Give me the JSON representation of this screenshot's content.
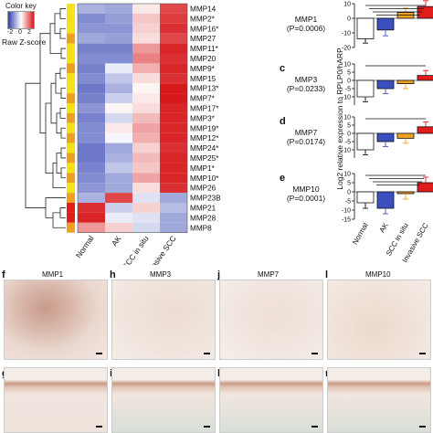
{
  "color_key": {
    "title": "Color key",
    "ticks": [
      "-2",
      "0",
      "2"
    ],
    "label": "Raw Z-score",
    "colors": {
      "low": "#2f3fb0",
      "mid": "#ffffff",
      "high": "#d7191c"
    }
  },
  "heatmap": {
    "columns": [
      "Normal",
      "AK",
      "SCC in situ",
      "Invasive SCC"
    ],
    "rows": [
      {
        "gene": "MMP14",
        "z": [
          -0.8,
          -0.9,
          0.2,
          1.6
        ],
        "group": "yellow"
      },
      {
        "gene": "MMP2*",
        "z": [
          -1.2,
          -1.0,
          0.5,
          1.7
        ],
        "group": "yellow"
      },
      {
        "gene": "MMP16*",
        "z": [
          -1.1,
          -1.1,
          0.4,
          1.8
        ],
        "group": "yellow"
      },
      {
        "gene": "MMP27",
        "z": [
          -0.9,
          -1.0,
          0.3,
          1.6
        ],
        "group": "orange"
      },
      {
        "gene": "MMP11*",
        "z": [
          -1.3,
          -1.3,
          0.9,
          1.9
        ],
        "group": "yellow"
      },
      {
        "gene": "MMP20",
        "z": [
          -1.2,
          -1.2,
          1.1,
          1.8
        ],
        "group": "yellow"
      },
      {
        "gene": "MMP9*",
        "z": [
          -1.3,
          -0.2,
          0.7,
          1.9
        ],
        "group": "orange"
      },
      {
        "gene": "MMP15",
        "z": [
          -1.2,
          -0.6,
          0.3,
          1.8
        ],
        "group": "yellow"
      },
      {
        "gene": "MMP13*",
        "z": [
          -1.4,
          -0.8,
          0.1,
          2.0
        ],
        "group": "yellow"
      },
      {
        "gene": "MMP7*",
        "z": [
          -1.3,
          -0.5,
          0.2,
          2.0
        ],
        "group": "orange"
      },
      {
        "gene": "MMP17*",
        "z": [
          -1.1,
          0.1,
          0.3,
          1.9
        ],
        "group": "yellow"
      },
      {
        "gene": "MMP3*",
        "z": [
          -1.3,
          -0.4,
          0.6,
          1.9
        ],
        "group": "orange"
      },
      {
        "gene": "MMP19*",
        "z": [
          -1.2,
          0.2,
          0.8,
          1.9
        ],
        "group": "yellow"
      },
      {
        "gene": "MMP12*",
        "z": [
          -1.2,
          -0.1,
          0.7,
          1.9
        ],
        "group": "orange"
      },
      {
        "gene": "MMP24*",
        "z": [
          -1.4,
          -0.9,
          0.4,
          1.8
        ],
        "group": "yellow"
      },
      {
        "gene": "MMP25*",
        "z": [
          -1.4,
          -0.8,
          0.6,
          1.9
        ],
        "group": "orange"
      },
      {
        "gene": "MMP1*",
        "z": [
          -1.3,
          -0.6,
          0.5,
          1.9
        ],
        "group": "yellow"
      },
      {
        "gene": "MMP10*",
        "z": [
          -1.2,
          -0.9,
          0.8,
          1.9
        ],
        "group": "orange"
      },
      {
        "gene": "MMP26",
        "z": [
          -1.1,
          -0.9,
          0.3,
          1.8
        ],
        "group": "yellow"
      },
      {
        "gene": "MMP23B",
        "z": [
          -0.8,
          1.6,
          -0.3,
          -0.9
        ],
        "group": "orange"
      },
      {
        "gene": "MMP21",
        "z": [
          1.8,
          -0.5,
          0.4,
          -0.7
        ],
        "group": "red"
      },
      {
        "gene": "MMP28",
        "z": [
          1.9,
          -0.2,
          -0.3,
          -0.9
        ],
        "group": "red"
      },
      {
        "gene": "MMP8",
        "z": [
          0.9,
          0.4,
          -0.4,
          -0.9
        ],
        "group": "orange"
      }
    ],
    "group_colors": {
      "yellow": "#f4e11a",
      "orange": "#f0a020",
      "red": "#e01c1c"
    }
  },
  "bar_panels": [
    {
      "letter": "",
      "gene": "MMP1",
      "p": "(P=0.0006)",
      "values": [
        -14,
        -8,
        4,
        8
      ],
      "errors": [
        3,
        4,
        3,
        4
      ],
      "ylim": [
        -20,
        10
      ],
      "ticks": [
        -20,
        -10,
        0,
        10
      ],
      "brackets": 4
    },
    {
      "letter": "c",
      "gene": "MMP3",
      "p": "(P=0.0233)",
      "values": [
        -10,
        -5,
        -2,
        3
      ],
      "errors": [
        3,
        3,
        3,
        3
      ],
      "ylim": [
        -15,
        10
      ],
      "ticks": [
        -10,
        -5,
        0,
        5,
        10
      ],
      "brackets": 1
    },
    {
      "letter": "d",
      "gene": "MMP7",
      "p": "(P=0.0174)",
      "values": [
        -10,
        -5,
        -3,
        4
      ],
      "errors": [
        3,
        3,
        3,
        3
      ],
      "ylim": [
        -15,
        10
      ],
      "ticks": [
        -10,
        -5,
        0,
        5,
        10
      ],
      "brackets": 1
    },
    {
      "letter": "e",
      "gene": "MMP10",
      "p": "(P=0.0001)",
      "values": [
        -6,
        -9,
        -1,
        5
      ],
      "errors": [
        3,
        3,
        3,
        3
      ],
      "ylim": [
        -15,
        10
      ],
      "ticks": [
        -15,
        -10,
        -5,
        0,
        5,
        10
      ],
      "brackets": 4
    }
  ],
  "bar_colors": [
    "#ffffff",
    "#3a50c0",
    "#f0a020",
    "#e01c1c"
  ],
  "bar_ylabel": "Log2 relative expression to RPLP0/hARP",
  "bar_categories": [
    "Normal",
    "AK",
    "SCC in situ",
    "Invasive SCC"
  ],
  "micrographs": {
    "top": [
      {
        "letter": "f",
        "title": "MMP1"
      },
      {
        "letter": "h",
        "title": "MMP3"
      },
      {
        "letter": "j",
        "title": "MMP7"
      },
      {
        "letter": "l",
        "title": "MMP10"
      }
    ],
    "bottom": [
      {
        "letter": "g"
      },
      {
        "letter": "i"
      },
      {
        "letter": "k"
      },
      {
        "letter": "m"
      }
    ]
  }
}
